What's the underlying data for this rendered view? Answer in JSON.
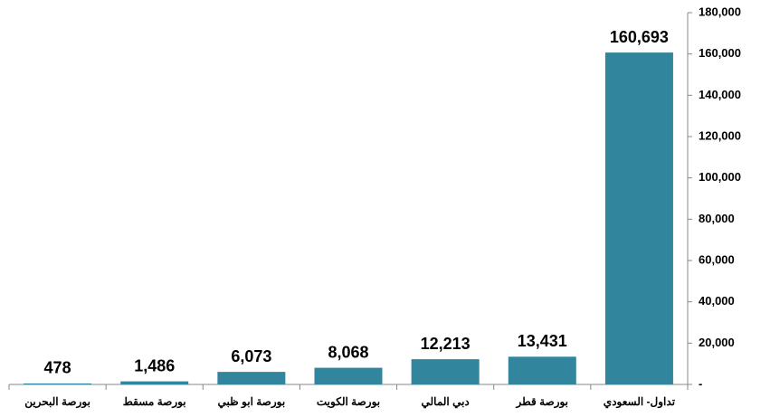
{
  "chart_data": {
    "type": "bar",
    "categories": [
      "بورصة البحرين",
      "بورصة مسقط",
      "بورصة ابو ظبي",
      "بورصة الكويت",
      "دبي المالي",
      "بورصة قطر",
      "تداول- السعودي"
    ],
    "values": [
      478,
      1486,
      6073,
      8068,
      12213,
      13431,
      160693
    ],
    "value_labels": [
      "478",
      "1,486",
      "6,073",
      "8,068",
      "12,213",
      "13,431",
      "160,693"
    ],
    "color": "#31859c",
    "ylim": [
      0,
      180000
    ],
    "yticks": [
      {
        "value": 0,
        "label": "-"
      },
      {
        "value": 20000,
        "label": "20,000"
      },
      {
        "value": 40000,
        "label": "40,000"
      },
      {
        "value": 60000,
        "label": "60,000"
      },
      {
        "value": 80000,
        "label": "80,000"
      },
      {
        "value": 100000,
        "label": "100,000"
      },
      {
        "value": 120000,
        "label": "120,000"
      },
      {
        "value": 140000,
        "label": "140,000"
      },
      {
        "value": 160000,
        "label": "160,000"
      },
      {
        "value": 180000,
        "label": "180,000"
      }
    ],
    "grid": false
  }
}
